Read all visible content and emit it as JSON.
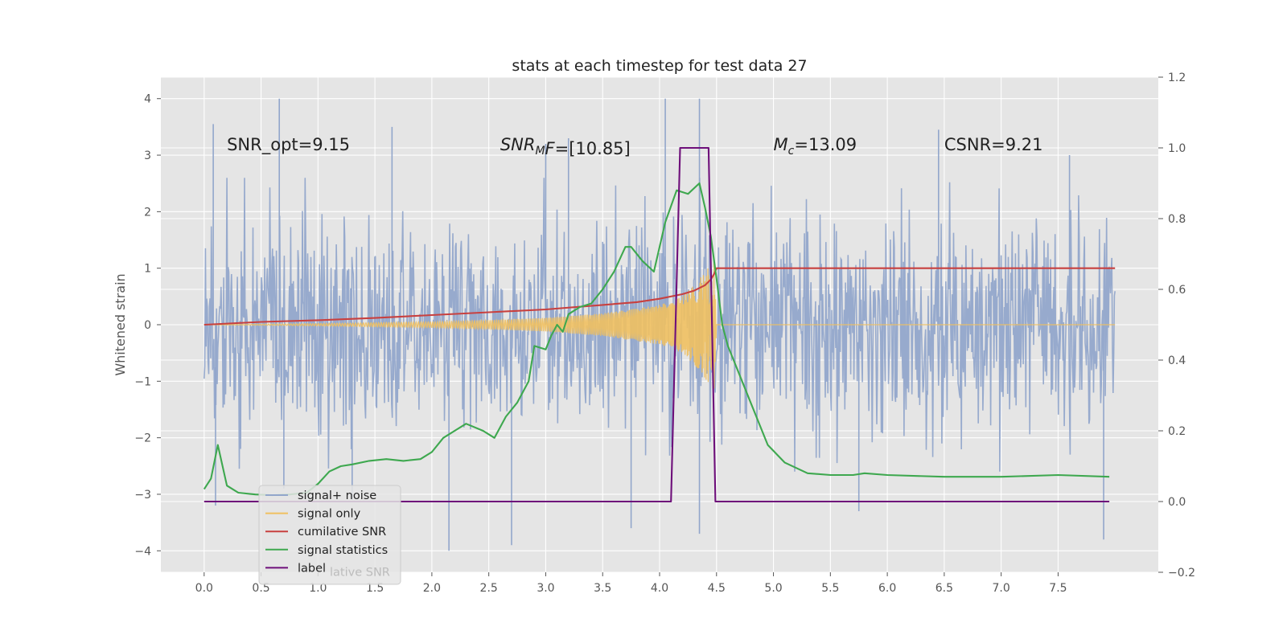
{
  "chart_data": {
    "type": "line",
    "title": "stats at each timestep for test data 27",
    "ylabel": "Whitened strain",
    "xlabel": "",
    "xlim": [
      -0.38,
      8.38
    ],
    "ylim": [
      -4.38,
      4.38
    ],
    "y2lim": [
      -0.2,
      1.2
    ],
    "grid": true,
    "x_ticks": [
      "0.0",
      "0.5",
      "1.0",
      "1.5",
      "2.0",
      "2.5",
      "3.0",
      "3.5",
      "4.0",
      "4.5",
      "5.0",
      "5.5",
      "6.0",
      "6.5",
      "7.0",
      "7.5"
    ],
    "y_ticks": [
      "−4",
      "−3",
      "−2",
      "−1",
      "0",
      "1",
      "2",
      "3",
      "4"
    ],
    "y2_ticks": [
      "−0.2",
      "0.0",
      "0.2",
      "0.4",
      "0.6",
      "0.8",
      "1.0",
      "1.2"
    ],
    "annotations": [
      {
        "name": "snr-opt",
        "text": "SNR_opt=9.15",
        "x": 0.2,
        "y": 3.2
      },
      {
        "name": "snr-mf",
        "text_main": "SNR",
        "text_sub": "M",
        "text_rest": "F=[10.85]",
        "x": 2.6,
        "y": 3.2
      },
      {
        "name": "chirp-mass",
        "text_main": "M",
        "text_sub": "c",
        "text_rest": "=13.09",
        "x": 5.0,
        "y": 3.2
      },
      {
        "name": "csnr",
        "text": "CSNR=9.21",
        "x": 6.5,
        "y": 3.2
      }
    ],
    "legend": {
      "placement": "lower-left",
      "entries": [
        {
          "label": "signal+ noise",
          "color": "#92a6cb"
        },
        {
          "label": "signal only",
          "color": "#f0c060"
        },
        {
          "label": "cumilative SNR",
          "color": "#c8403f"
        },
        {
          "label": "signal statistics",
          "color": "#3ea84f"
        },
        {
          "label": "label",
          "color": "#6e0f7a"
        }
      ],
      "hidden_text": "lative SNR"
    },
    "series": [
      {
        "name": "signal+ noise",
        "axis": "left",
        "color": "#92a6cb",
        "x_start": 0.0,
        "x_end": 8.0,
        "points": 1400,
        "noise_std": 0.95,
        "peaks": [
          {
            "x": 0.08,
            "y": 3.55
          },
          {
            "x": 0.1,
            "y": -3.2
          },
          {
            "x": 0.66,
            "y": 4.0
          },
          {
            "x": 0.7,
            "y": -2.9
          },
          {
            "x": 1.65,
            "y": 3.5
          },
          {
            "x": 2.15,
            "y": -4.0
          },
          {
            "x": 2.7,
            "y": -3.9
          },
          {
            "x": 3.0,
            "y": 3.2
          },
          {
            "x": 3.75,
            "y": -3.6
          },
          {
            "x": 4.05,
            "y": 4.0
          },
          {
            "x": 4.35,
            "y": 4.0
          },
          {
            "x": 4.35,
            "y": -3.7
          },
          {
            "x": 5.75,
            "y": -3.3
          },
          {
            "x": 6.45,
            "y": 3.45
          },
          {
            "x": 7.6,
            "y": 3.0
          },
          {
            "x": 7.9,
            "y": -3.8
          },
          {
            "x": 1.3,
            "y": -3.1
          },
          {
            "x": 3.2,
            "y": 3.3
          }
        ]
      },
      {
        "name": "signal only",
        "axis": "left",
        "color": "#f0c060",
        "envelope": [
          {
            "x": 0.0,
            "y": 0.0
          },
          {
            "x": 1.0,
            "y": 0.02
          },
          {
            "x": 2.0,
            "y": 0.05
          },
          {
            "x": 2.5,
            "y": 0.08
          },
          {
            "x": 3.0,
            "y": 0.12
          },
          {
            "x": 3.5,
            "y": 0.2
          },
          {
            "x": 4.0,
            "y": 0.35
          },
          {
            "x": 4.2,
            "y": 0.5
          },
          {
            "x": 4.35,
            "y": 0.8
          },
          {
            "x": 4.45,
            "y": 1.1
          },
          {
            "x": 4.48,
            "y": 1.2
          },
          {
            "x": 4.5,
            "y": 0.0
          },
          {
            "x": 8.0,
            "y": 0.0
          }
        ]
      },
      {
        "name": "cumilative SNR",
        "axis": "left",
        "color": "#c8403f",
        "x": [
          0.0,
          0.5,
          1.0,
          1.5,
          2.0,
          2.5,
          3.0,
          3.5,
          3.8,
          4.0,
          4.2,
          4.3,
          4.4,
          4.45,
          4.48,
          4.5,
          5.0,
          6.0,
          7.0,
          8.0
        ],
        "y": [
          0.0,
          0.05,
          0.08,
          0.12,
          0.17,
          0.22,
          0.27,
          0.35,
          0.4,
          0.46,
          0.54,
          0.6,
          0.7,
          0.8,
          0.9,
          1.0,
          1.0,
          1.0,
          1.0,
          1.0
        ]
      },
      {
        "name": "signal statistics",
        "axis": "right",
        "color": "#3ea84f",
        "x": [
          0.0,
          0.06,
          0.12,
          0.2,
          0.3,
          0.45,
          0.6,
          0.75,
          0.9,
          1.0,
          1.1,
          1.2,
          1.3,
          1.45,
          1.6,
          1.75,
          1.9,
          2.0,
          2.1,
          2.2,
          2.3,
          2.45,
          2.55,
          2.65,
          2.75,
          2.85,
          2.9,
          3.0,
          3.05,
          3.1,
          3.15,
          3.2,
          3.3,
          3.4,
          3.5,
          3.6,
          3.7,
          3.75,
          3.85,
          3.95,
          4.05,
          4.15,
          4.25,
          4.35,
          4.4,
          4.45,
          4.5,
          4.55,
          4.6,
          4.7,
          4.8,
          4.95,
          5.1,
          5.3,
          5.5,
          5.7,
          5.8,
          6.0,
          6.5,
          7.0,
          7.5,
          7.95
        ],
        "y": [
          0.035,
          0.065,
          0.16,
          0.045,
          0.025,
          0.02,
          0.018,
          0.02,
          0.025,
          0.05,
          0.085,
          0.1,
          0.105,
          0.115,
          0.12,
          0.115,
          0.12,
          0.14,
          0.18,
          0.2,
          0.22,
          0.2,
          0.18,
          0.24,
          0.28,
          0.34,
          0.44,
          0.43,
          0.47,
          0.5,
          0.48,
          0.53,
          0.55,
          0.56,
          0.6,
          0.65,
          0.72,
          0.72,
          0.68,
          0.65,
          0.79,
          0.88,
          0.87,
          0.9,
          0.83,
          0.75,
          0.63,
          0.5,
          0.44,
          0.36,
          0.28,
          0.16,
          0.11,
          0.08,
          0.075,
          0.075,
          0.08,
          0.075,
          0.07,
          0.07,
          0.075,
          0.07
        ]
      },
      {
        "name": "label",
        "axis": "right",
        "color": "#6e0f7a",
        "x": [
          0.0,
          4.1,
          4.18,
          4.43,
          4.49,
          7.95
        ],
        "y": [
          0.0,
          0.0,
          1.0,
          1.0,
          0.0,
          0.0
        ]
      }
    ]
  }
}
